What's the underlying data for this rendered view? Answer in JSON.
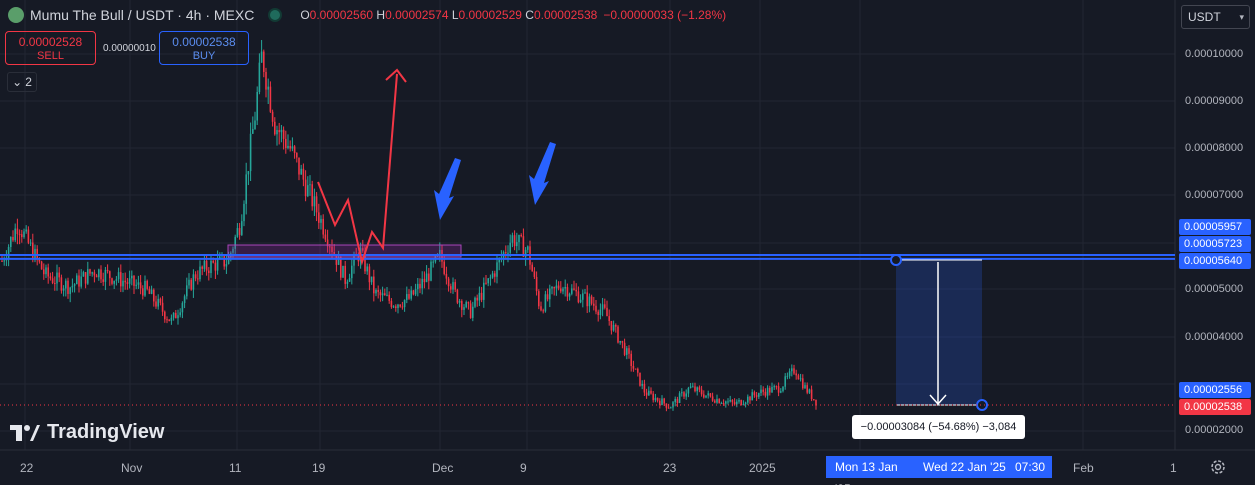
{
  "legend": {
    "title": "Mumu The Bull / USDT · 4h · MEXC",
    "o_label": "O",
    "o": "0.00002560",
    "h_label": "H",
    "h": "0.00002574",
    "l_label": "L",
    "l": "0.00002529",
    "c_label": "C",
    "c": "0.00002538",
    "change": "−0.00000033 (−1.28%)"
  },
  "trade": {
    "sell_price": "0.00002528",
    "sell_label": "SELL",
    "spread": "0.00000010",
    "buy_price": "0.00002538",
    "buy_label": "BUY"
  },
  "indicators_collapse": "2",
  "currency": "USDT",
  "price_axis": {
    "ticks": [
      "0.00010000",
      "0.00009000",
      "0.00008000",
      "0.00007000",
      "0.00005000",
      "0.00004000",
      "0.00002000"
    ],
    "labels": [
      {
        "text": "0.00005957",
        "color": "#2962ff"
      },
      {
        "text": "0.00005723",
        "color": "#2962ff"
      },
      {
        "text": "0.00005640",
        "color": "#2962ff"
      },
      {
        "text": "0.00002556",
        "color": "#2962ff"
      },
      {
        "text": "0.00002538",
        "color": "#f23645"
      }
    ]
  },
  "time_axis": [
    "22",
    "Nov",
    "11",
    "19",
    "Dec",
    "9",
    "23",
    "2025",
    "Feb",
    "1"
  ],
  "time_highlights": [
    "Mon 13 Jan '25",
    "Wed 22 Jan '25",
    "07:30"
  ],
  "measure_text": "−0.00003084 (−54.68%) −3,084",
  "brand": "TradingView",
  "colors": {
    "bull": "#26a69a",
    "bear": "#f23645",
    "line": "#2962ff",
    "background": "#161a25"
  }
}
